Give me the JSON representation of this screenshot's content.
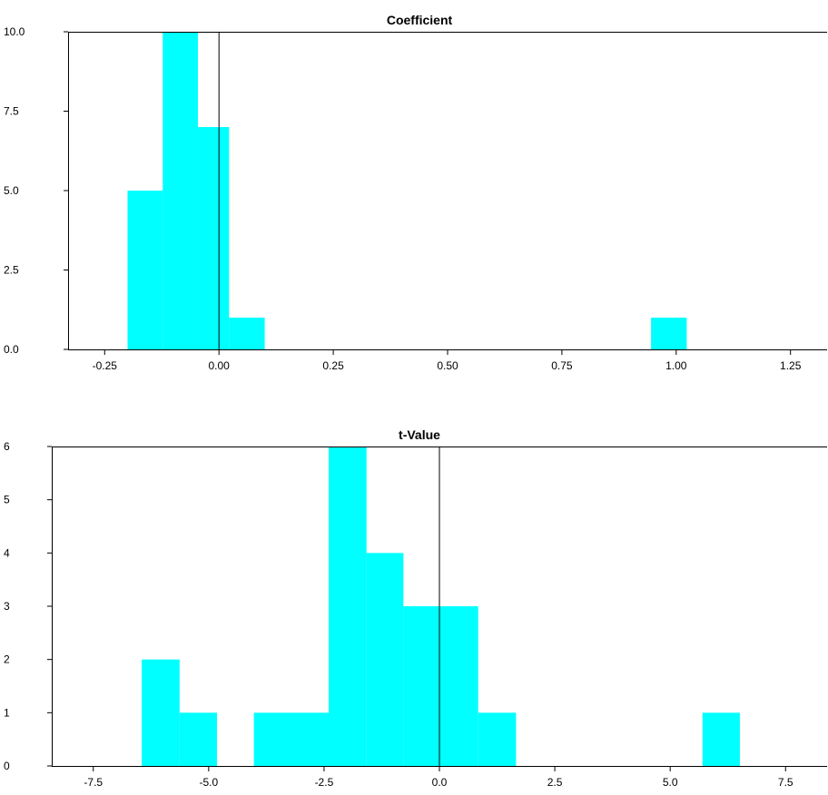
{
  "chart_data": [
    {
      "type": "bar",
      "subtype": "histogram",
      "title": "Coefficient",
      "xlabel": "",
      "ylabel": "",
      "bar_color": "#00ffff",
      "xlim": [
        -0.33,
        1.33
      ],
      "ylim": [
        0,
        10
      ],
      "xticks": [
        -0.25,
        0,
        0.25,
        0.5,
        0.75,
        1.0,
        1.25
      ],
      "xtick_labels": [
        "-0.25",
        "0.00",
        "0.25",
        "0.50",
        "0.75",
        "1.00",
        "1.25"
      ],
      "yticks": [
        0,
        2.5,
        5.0,
        7.5,
        10.0
      ],
      "ytick_labels": [
        "0.0",
        "2.5",
        "5.0",
        "7.5",
        "10.0"
      ],
      "reference_line_x": 0,
      "bins": [
        {
          "x0": -0.2,
          "x1": -0.123,
          "count": 5
        },
        {
          "x0": -0.123,
          "x1": -0.046,
          "count": 10
        },
        {
          "x0": -0.046,
          "x1": 0.022,
          "count": 7
        },
        {
          "x0": 0.022,
          "x1": 0.1,
          "count": 1
        },
        {
          "x0": 0.945,
          "x1": 1.023,
          "count": 1
        }
      ],
      "grid": false
    },
    {
      "type": "bar",
      "subtype": "histogram",
      "title": "t-Value",
      "xlabel": "",
      "ylabel": "",
      "bar_color": "#00ffff",
      "xlim": [
        -8.4,
        8.4
      ],
      "ylim": [
        0,
        6
      ],
      "xticks": [
        -7.5,
        -5.0,
        -2.5,
        0,
        2.5,
        5.0,
        7.5
      ],
      "xtick_labels": [
        "-7.5",
        "-5.0",
        "-2.5",
        "0.0",
        "2.5",
        "5.0",
        "7.5"
      ],
      "yticks": [
        0,
        1,
        2,
        3,
        4,
        5,
        6
      ],
      "ytick_labels": [
        "0",
        "1",
        "2",
        "3",
        "4",
        "5",
        "6"
      ],
      "reference_line_x": 0,
      "bins": [
        {
          "x0": -6.45,
          "x1": -5.63,
          "count": 2
        },
        {
          "x0": -5.63,
          "x1": -4.82,
          "count": 1
        },
        {
          "x0": -4.02,
          "x1": -2.4,
          "count": 1
        },
        {
          "x0": -2.4,
          "x1": -1.58,
          "count": 6
        },
        {
          "x0": -1.58,
          "x1": -0.78,
          "count": 4
        },
        {
          "x0": -0.78,
          "x1": 0.84,
          "count": 3
        },
        {
          "x0": 0.84,
          "x1": 1.66,
          "count": 1
        },
        {
          "x0": 5.7,
          "x1": 6.51,
          "count": 1
        }
      ],
      "grid": false
    }
  ]
}
